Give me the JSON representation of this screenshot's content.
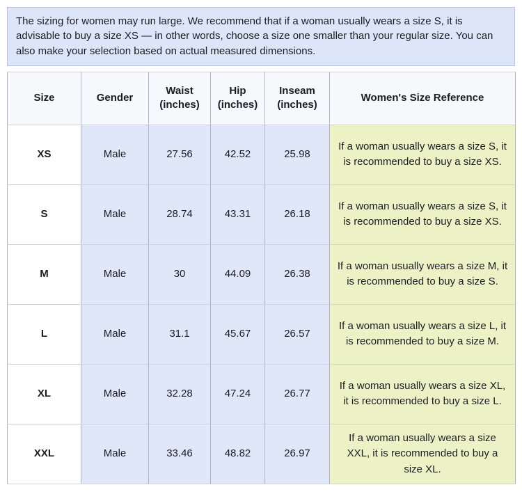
{
  "notice": {
    "text": "The sizing for women may run large. We recommend that if a woman usually wears a size S, it is advisable to buy a size XS — in other words, choose a size one smaller than your regular size. You can also make your selection based on actual measured dimensions."
  },
  "table": {
    "columns": [
      {
        "key": "size",
        "label": "Size"
      },
      {
        "key": "gender",
        "label": "Gender"
      },
      {
        "key": "waist",
        "label": "Waist (inches)"
      },
      {
        "key": "hip",
        "label": "Hip (inches)"
      },
      {
        "key": "inseam",
        "label": "Inseam (inches)"
      },
      {
        "key": "reference",
        "label": "Women's Size Reference"
      }
    ],
    "rows": [
      {
        "size": "XS",
        "gender": "Male",
        "waist": "27.56",
        "hip": "42.52",
        "inseam": "25.98",
        "reference": "If a woman usually wears a size S, it is recommended to buy a size XS."
      },
      {
        "size": "S",
        "gender": "Male",
        "waist": "28.74",
        "hip": "43.31",
        "inseam": "26.18",
        "reference": "If a woman usually wears a size S, it is recommended to buy a size XS."
      },
      {
        "size": "M",
        "gender": "Male",
        "waist": "30",
        "hip": "44.09",
        "inseam": "26.38",
        "reference": "If a woman usually wears a size M, it is recommended to buy a size S."
      },
      {
        "size": "L",
        "gender": "Male",
        "waist": "31.1",
        "hip": "45.67",
        "inseam": "26.57",
        "reference": "If a woman usually wears a size L, it is recommended to buy a size M."
      },
      {
        "size": "XL",
        "gender": "Male",
        "waist": "32.28",
        "hip": "47.24",
        "inseam": "26.77",
        "reference": "If a woman usually wears a size XL, it is recommended to buy a size L."
      },
      {
        "size": "XXL",
        "gender": "Male",
        "waist": "33.46",
        "hip": "48.82",
        "inseam": "26.97",
        "reference": "If a woman usually wears a size XXL, it is recommended to buy a size XL."
      }
    ]
  },
  "colors": {
    "notice_bg": "#dde5f8",
    "notice_border": "#b7c3e2",
    "cell_blue": "#dfe7f8",
    "cell_green": "#ecf2c6",
    "header_bg": "#f6f8fb",
    "grid_vertical": "#aeb6c6",
    "grid_horizontal": "#cdd2db",
    "text": "#1a1d23"
  }
}
